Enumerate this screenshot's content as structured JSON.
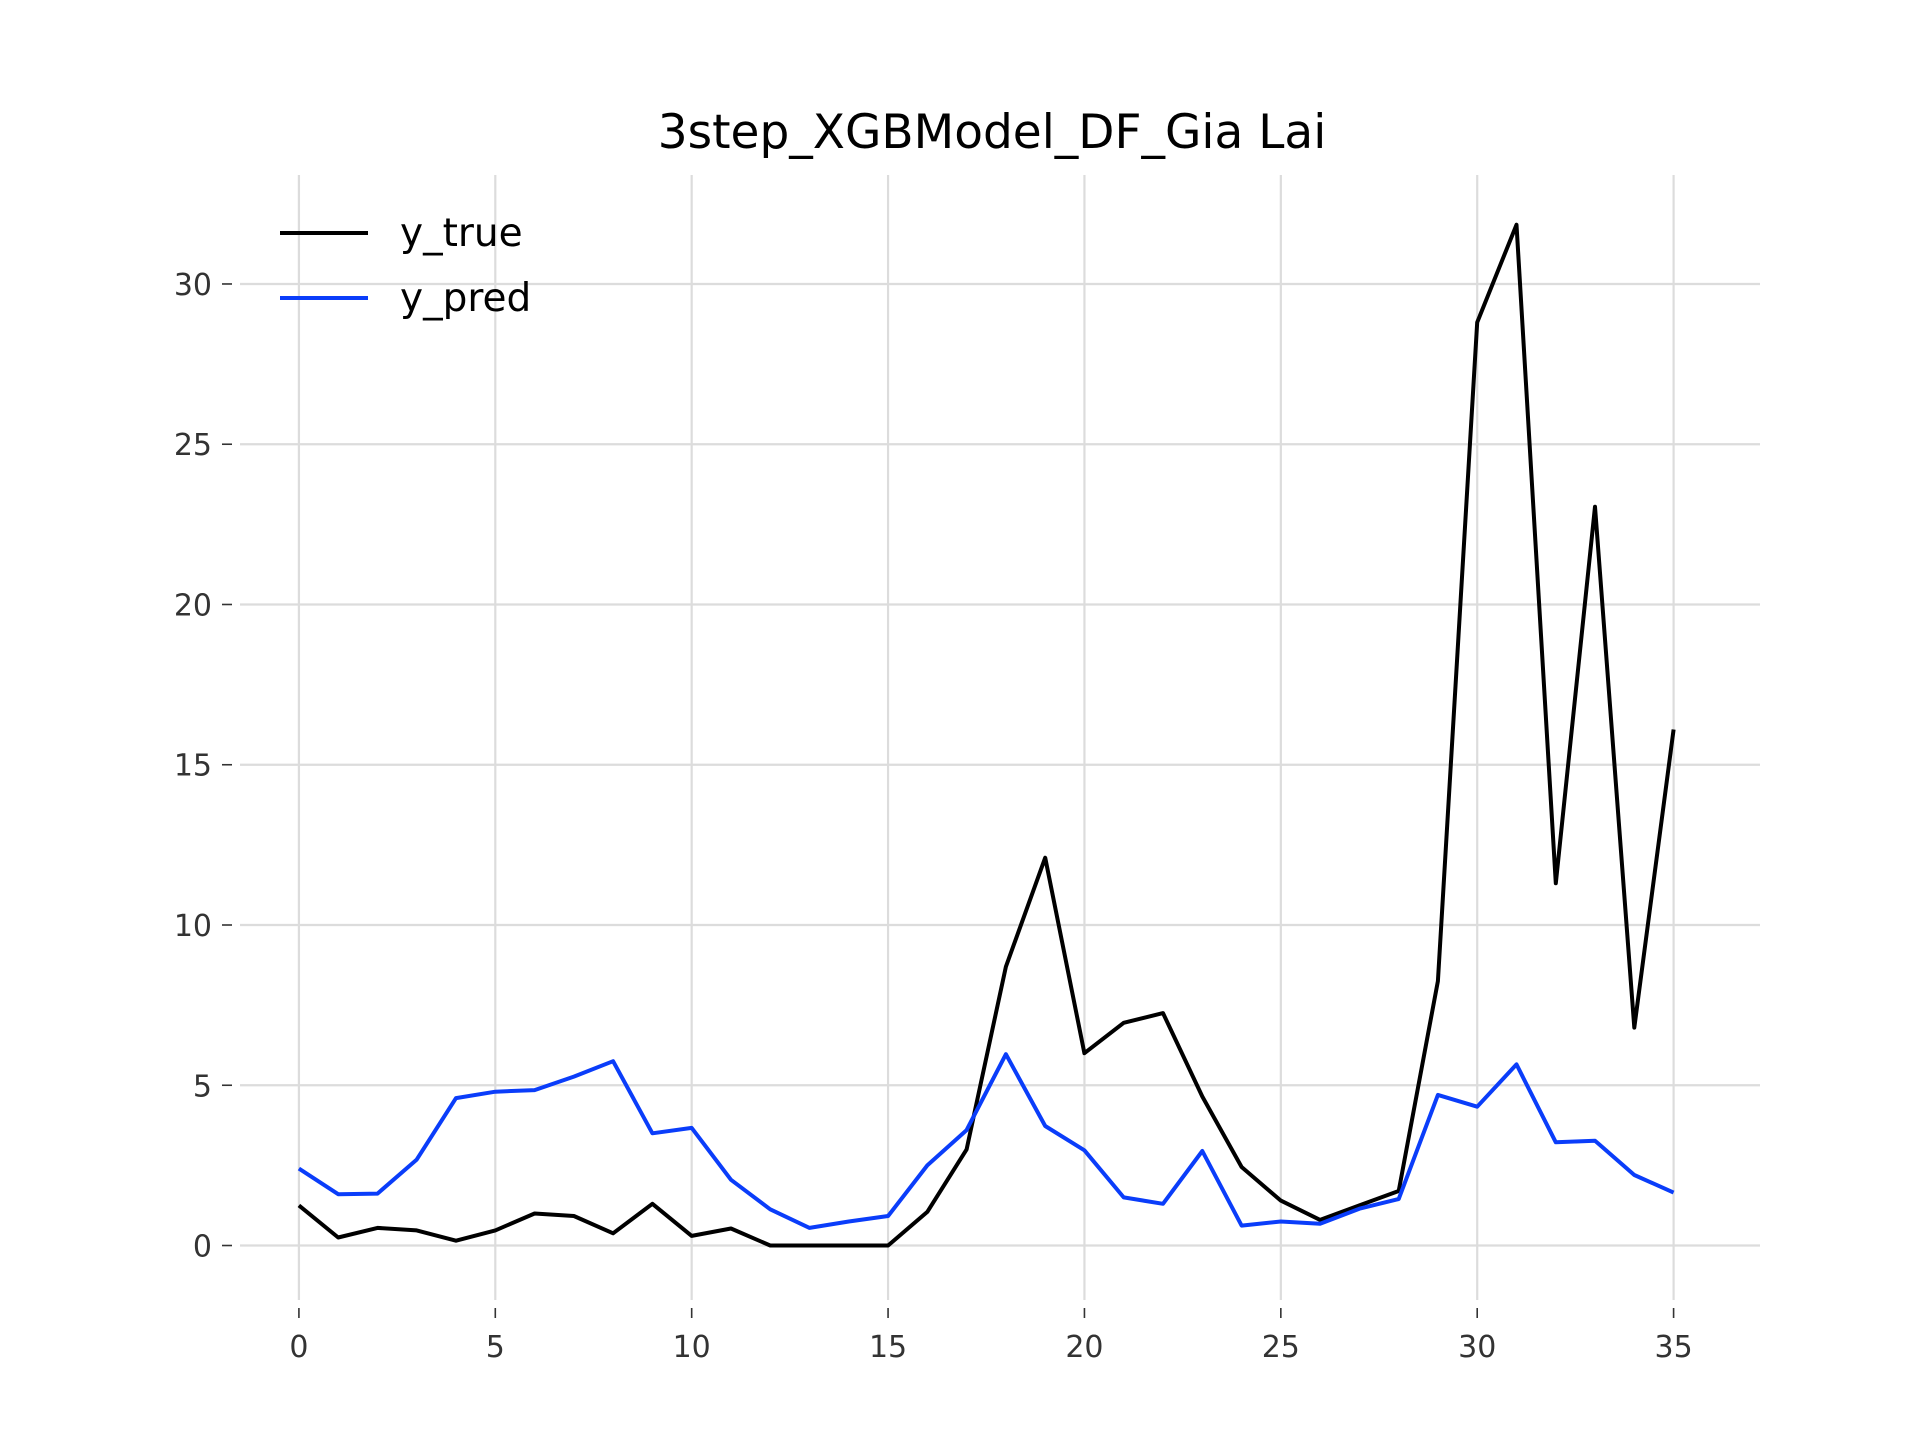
{
  "chart_data": {
    "type": "line",
    "title": "3step_XGBModel_DF_Gia Lai",
    "xlabel": "",
    "ylabel": "",
    "xlim": [
      -1.5,
      37.2
    ],
    "ylim": [
      -1.7,
      33.4
    ],
    "xticks": [
      0,
      5,
      10,
      15,
      20,
      25,
      30,
      35
    ],
    "yticks": [
      0,
      5,
      10,
      15,
      20,
      25,
      30
    ],
    "grid": true,
    "legend_position": "top-left",
    "x": [
      0,
      1,
      2,
      3,
      4,
      5,
      6,
      7,
      8,
      9,
      10,
      11,
      12,
      13,
      14,
      15,
      16,
      17,
      18,
      19,
      20,
      21,
      22,
      23,
      24,
      25,
      26,
      27,
      28,
      29,
      30,
      31,
      32,
      33,
      34,
      35
    ],
    "series": [
      {
        "name": "y_true",
        "color": "#000000",
        "values": [
          1.25,
          0.25,
          0.55,
          0.47,
          0.15,
          0.47,
          1.0,
          0.92,
          0.38,
          1.3,
          0.3,
          0.53,
          0.0,
          0.0,
          0.0,
          0.0,
          1.05,
          3.0,
          8.7,
          12.1,
          6.0,
          6.95,
          7.25,
          4.65,
          2.45,
          1.4,
          0.8,
          1.25,
          1.7,
          8.25,
          28.8,
          31.85,
          11.3,
          23.05,
          6.8,
          16.1
        ]
      },
      {
        "name": "y_pred",
        "color": "#0a3dfa",
        "values": [
          2.4,
          1.6,
          1.62,
          2.68,
          4.6,
          4.8,
          4.85,
          5.27,
          5.75,
          3.5,
          3.67,
          2.05,
          1.13,
          0.55,
          0.75,
          0.92,
          2.5,
          3.6,
          5.97,
          3.73,
          2.97,
          1.5,
          1.3,
          2.95,
          0.62,
          0.75,
          0.68,
          1.15,
          1.45,
          4.7,
          4.33,
          5.65,
          3.22,
          3.27,
          2.2,
          1.65
        ]
      }
    ]
  }
}
